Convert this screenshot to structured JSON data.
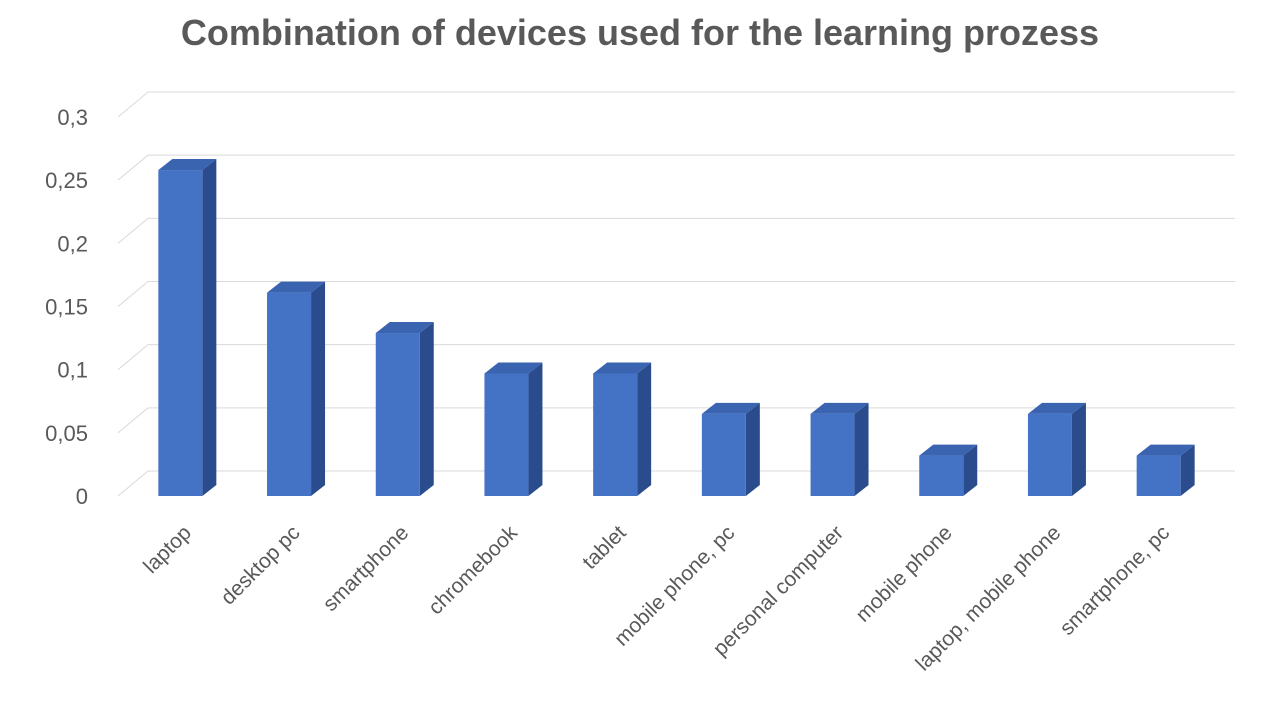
{
  "chart_data": {
    "type": "bar",
    "title": "Combination of devices used for the learning prozess",
    "xlabel": "",
    "ylabel": "",
    "categories": [
      "laptop",
      "desktop pc",
      "smartphone",
      "chromebook",
      "tablet",
      "mobile phone, pc",
      "personal computer",
      "mobile phone",
      "laptop, mobile phone",
      "smartphone, pc"
    ],
    "values": [
      0.258,
      0.161,
      0.129,
      0.097,
      0.097,
      0.065,
      0.065,
      0.032,
      0.065,
      0.032
    ],
    "ylim": [
      0,
      0.3
    ],
    "y_ticks": [
      "0",
      "0,05",
      "0,1",
      "0,15",
      "0,2",
      "0,25",
      "0,3"
    ],
    "grid": true,
    "legend": "none",
    "style": "3d-column",
    "colors": {
      "bar_front": "#4472C4",
      "bar_side": "#2B4C8C",
      "bar_top": "#3A63B0",
      "grid": "#D9D9D9",
      "text": "#595959"
    }
  }
}
